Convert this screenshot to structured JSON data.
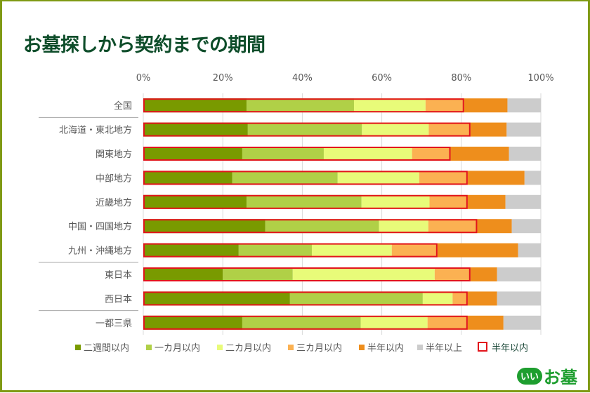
{
  "title": "お墓探しから契約までの期間",
  "logo": {
    "mark": "いい",
    "name": "お墓"
  },
  "chart_data": {
    "type": "bar",
    "orientation": "horizontal",
    "stacked": true,
    "percent": true,
    "title": "お墓探しから契約までの期間",
    "xlabel": "",
    "ylabel": "",
    "xlim": [
      0,
      100
    ],
    "x_ticks": [
      "0%",
      "20%",
      "40%",
      "60%",
      "80%",
      "100%"
    ],
    "grid": true,
    "legend_position": "bottom",
    "categories": [
      "全国",
      "北海道・東北地方",
      "関東地方",
      "中部地方",
      "近畿地方",
      "中国・四国地方",
      "九州・沖縄地方",
      "東日本",
      "西日本",
      "一都三県"
    ],
    "group_separators_after": [
      "全国",
      "九州・沖縄地方",
      "西日本"
    ],
    "series": [
      {
        "name": "二週間以内",
        "color": "#799a00",
        "values": [
          26.0,
          26.3,
          24.9,
          22.4,
          26.0,
          30.7,
          24.0,
          20.0,
          36.9,
          24.9
        ]
      },
      {
        "name": "一カ月以内",
        "color": "#b0d047",
        "values": [
          27.0,
          28.7,
          20.5,
          26.5,
          28.9,
          28.6,
          18.4,
          17.6,
          33.4,
          29.8
        ]
      },
      {
        "name": "二カ月以内",
        "color": "#e8fb79",
        "values": [
          18.0,
          16.8,
          22.2,
          20.5,
          17.1,
          12.4,
          20.1,
          35.7,
          7.5,
          16.8
        ]
      },
      {
        "name": "三カ月以内",
        "color": "#fbb152",
        "values": [
          9.7,
          10.5,
          9.7,
          12.2,
          9.6,
          12.3,
          11.5,
          9.0,
          3.8,
          10.1
        ]
      },
      {
        "name": "半年以内",
        "color": "#ee8e1c",
        "values": [
          10.9,
          9.1,
          14.7,
          14.3,
          9.5,
          8.7,
          20.3,
          6.7,
          7.4,
          9.0
        ]
      },
      {
        "name": "半年以上",
        "color": "#cccccc",
        "values": [
          8.4,
          8.6,
          8.0,
          4.1,
          8.9,
          7.3,
          5.7,
          11.0,
          11.0,
          9.4
        ]
      }
    ],
    "highlight": {
      "name": "半年以内",
      "color": "#e2141b",
      "description": "cumulative outline of first four series"
    }
  }
}
